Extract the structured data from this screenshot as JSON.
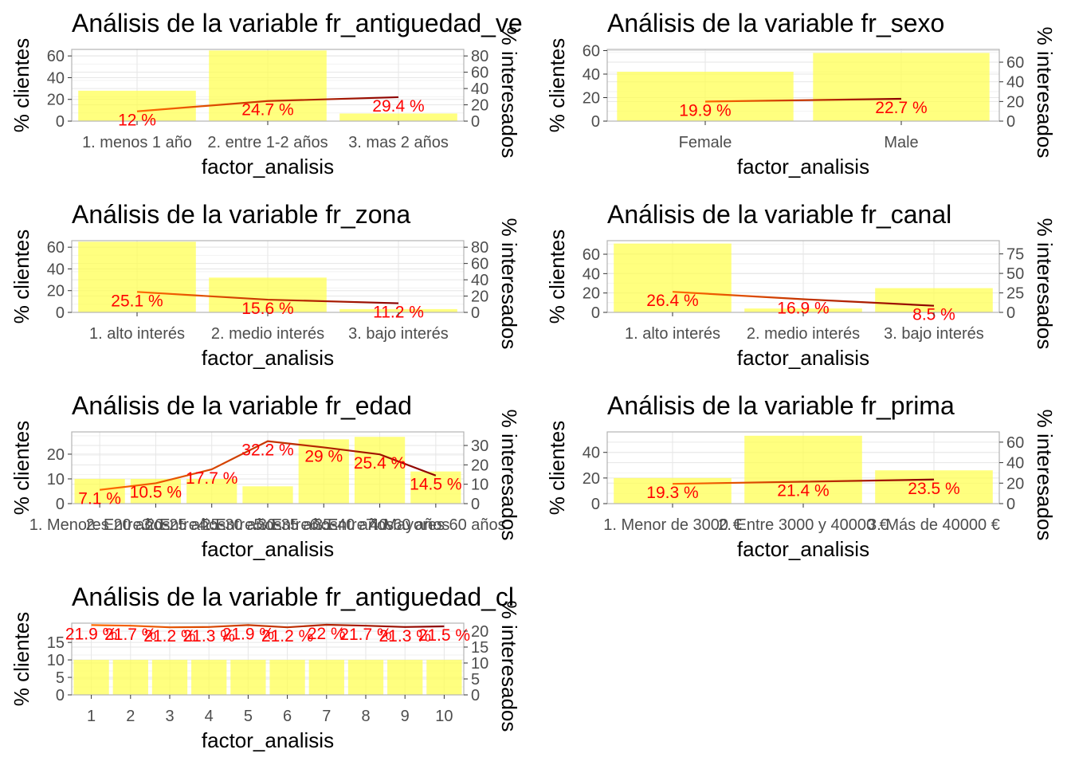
{
  "charts": [
    {
      "id": "antiguedad-vehiculo",
      "type": "bar",
      "title": "Análisis de la variable fr_antiguedad_ve",
      "xlabel": "factor_analisis",
      "ylabel": "% clientes",
      "y2label": "% interesados",
      "categories": [
        "1. menos 1 año",
        "2. entre 1-2 años",
        "3. mas 2 años"
      ],
      "bars": [
        28,
        65,
        7
      ],
      "line": [
        12,
        24.7,
        29.4
      ],
      "line_labels": [
        "12  %",
        "24.7  %",
        "29.4  %"
      ],
      "ylim": [
        0,
        66
      ],
      "yticks": [
        0,
        20,
        40,
        60
      ],
      "y2lim": [
        0,
        88
      ],
      "y2ticks": [
        0,
        20,
        40,
        60,
        80
      ],
      "y2minor": [
        10,
        30,
        50,
        70
      ]
    },
    {
      "id": "sexo",
      "type": "bar",
      "title": "Análisis de la variable fr_sexo",
      "xlabel": "factor_analisis",
      "ylabel": "% clientes",
      "y2label": "% interesados",
      "categories": [
        "Female",
        "Male"
      ],
      "bars": [
        42,
        58
      ],
      "line": [
        19.9,
        22.7
      ],
      "line_labels": [
        "19.9  %",
        "22.7  %"
      ],
      "ylim": [
        0,
        61
      ],
      "yticks": [
        0,
        20,
        40,
        60
      ],
      "y2lim": [
        0,
        73
      ],
      "y2ticks": [
        0,
        20,
        40,
        60
      ],
      "y2minor": [
        10,
        30,
        50,
        70
      ]
    },
    {
      "id": "zona",
      "type": "bar",
      "title": "Análisis de la variable fr_zona",
      "xlabel": "factor_analisis",
      "ylabel": "% clientes",
      "y2label": "% interesados",
      "categories": [
        "1. alto interés",
        "2. medio interés",
        "3. bajo interés"
      ],
      "bars": [
        65,
        32,
        3
      ],
      "line": [
        25.1,
        15.6,
        11.2
      ],
      "line_labels": [
        "25.1  %",
        "15.6  %",
        "11.2  %"
      ],
      "ylim": [
        0,
        66
      ],
      "yticks": [
        0,
        20,
        40,
        60
      ],
      "y2lim": [
        0,
        88
      ],
      "y2ticks": [
        0,
        20,
        40,
        60,
        80
      ],
      "y2minor": [
        10,
        30,
        50,
        70
      ]
    },
    {
      "id": "canal",
      "type": "bar",
      "title": "Análisis de la variable fr_canal",
      "xlabel": "factor_analisis",
      "ylabel": "% clientes",
      "y2label": "% interesados",
      "categories": [
        "1. alto interés",
        "2. medio interés",
        "3. bajo interés"
      ],
      "bars": [
        71,
        4,
        25
      ],
      "line": [
        26.4,
        16.9,
        8.5
      ],
      "line_labels": [
        "26.4  %",
        "16.9  %",
        "8.5  %"
      ],
      "ylim": [
        0,
        74
      ],
      "yticks": [
        0,
        20,
        40,
        60
      ],
      "y2lim": [
        0,
        92
      ],
      "y2ticks": [
        0,
        25,
        50,
        75
      ],
      "y2minor": [
        12.5,
        37.5,
        62.5,
        87.5
      ]
    },
    {
      "id": "edad",
      "type": "bar",
      "title": "Análisis de la variable fr_edad",
      "xlabel": "factor_analisis",
      "ylabel": "% clientes",
      "y2label": "% interesados",
      "categories": [
        "1. Menores 20 años",
        "2. Entre 20-25 años",
        "3. Entre 25-30 años",
        "4. Entre 30-35 años",
        "5. Entre 35-40 años",
        "6. Entre 40-60 años",
        "7. Mayores 60 años"
      ],
      "bars": [
        10,
        10,
        10,
        7,
        26,
        27,
        13
      ],
      "line": [
        7.1,
        10.5,
        17.7,
        32.2,
        29,
        25.4,
        14.5
      ],
      "line_labels": [
        "7.1  %",
        "10.5  %",
        "17.7  %",
        "32.2  %",
        "29  %",
        "25.4  %",
        "14.5  %"
      ],
      "ylim": [
        0,
        29
      ],
      "yticks": [
        0,
        10,
        20
      ],
      "y2lim": [
        0,
        37
      ],
      "y2ticks": [
        0,
        10,
        20,
        30
      ],
      "y2minor": [
        5,
        15,
        25,
        35
      ]
    },
    {
      "id": "prima",
      "type": "bar",
      "title": "Análisis de la variable fr_prima",
      "xlabel": "factor_analisis",
      "ylabel": "% clientes",
      "y2label": "% interesados",
      "categories": [
        "1. Menor de 3000 €",
        "2. Entre 3000 y 40000 €",
        "3. Más de 40000 €"
      ],
      "bars": [
        20,
        53,
        26
      ],
      "line": [
        19.3,
        21.4,
        23.5
      ],
      "line_labels": [
        "19.3  %",
        "21.4  %",
        "23.5  %"
      ],
      "ylim": [
        0,
        56
      ],
      "yticks": [
        0,
        20,
        40
      ],
      "y2lim": [
        0,
        70
      ],
      "y2ticks": [
        0,
        20,
        40,
        60
      ],
      "y2minor": [
        10,
        30,
        50
      ]
    },
    {
      "id": "antiguedad",
      "type": "bar",
      "title": "Análisis de la variable fr_antiguedad_cl",
      "xlabel": "factor_analisis",
      "ylabel": "% clientes",
      "y2label": "% interesados",
      "categories": [
        "1",
        "2",
        "3",
        "4",
        "5",
        "6",
        "7",
        "8",
        "9",
        "10"
      ],
      "bars": [
        10,
        10,
        10,
        10,
        10,
        10,
        10,
        10,
        10,
        10
      ],
      "line": [
        21.9,
        21.7,
        21.2,
        21.3,
        21.9,
        21.2,
        22,
        21.7,
        21.3,
        21.5
      ],
      "line_labels": [
        "21.9  %",
        "21.7  %",
        "21.2  %",
        "21.3  %",
        "21.9  %",
        "21.2  %",
        "22  %",
        "21.7  %",
        "21.3  %",
        "21.5  %"
      ],
      "ylim": [
        0,
        20.5
      ],
      "yticks": [
        0,
        5,
        10,
        15
      ],
      "y2lim": [
        0,
        22.5
      ],
      "y2ticks": [
        0,
        5,
        10,
        15,
        20
      ],
      "y2minor": [
        2.5,
        7.5,
        12.5,
        17.5
      ]
    }
  ]
}
